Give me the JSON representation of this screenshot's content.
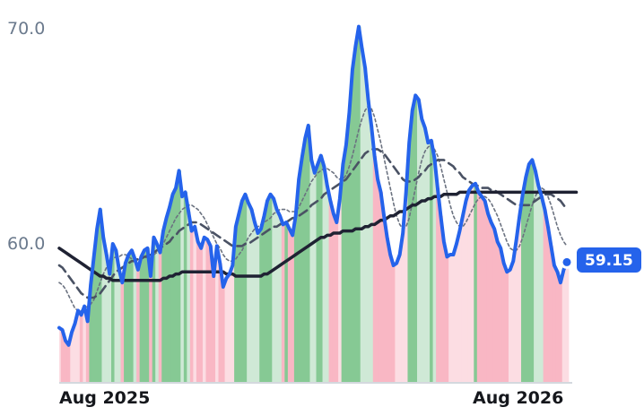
{
  "chart_data": {
    "type": "line",
    "y_ticks": [
      "70.0",
      "60.0"
    ],
    "y_tick_values": [
      70,
      60
    ],
    "x_ticks": [
      "Aug 2025",
      "Aug 2026"
    ],
    "x_tick_values": [
      "2025-08",
      "2026-08"
    ],
    "x_range": [
      "2025-07",
      "2026-09"
    ],
    "ylim": [
      53.7,
      71.6
    ],
    "last_value_label": "59.15",
    "grid": false,
    "colors": {
      "price": "#2563eb",
      "ma_long": "#1f2233",
      "ma_mid": "#4a5264",
      "ma_short": "#6b7280",
      "up_fill": "#86c994",
      "up_fill_light": "#cfe9d6",
      "down_fill": "#f9b7c4",
      "down_fill_light": "#fcdde3",
      "label_bg": "#2563eb",
      "axis": "#d4d8de"
    },
    "price_values": [
      56.1,
      56.0,
      55.5,
      55.3,
      55.9,
      56.3,
      56.9,
      56.7,
      57.1,
      56.4,
      58.1,
      59.4,
      60.7,
      61.6,
      60.3,
      59.5,
      58.6,
      60.0,
      59.7,
      58.8,
      58.2,
      59.1,
      59.5,
      59.7,
      59.3,
      58.8,
      59.4,
      59.7,
      59.8,
      58.5,
      60.3,
      60.0,
      59.6,
      60.6,
      61.2,
      61.7,
      62.3,
      62.6,
      63.4,
      62.2,
      62.4,
      61.5,
      60.6,
      60.8,
      60.1,
      59.8,
      60.3,
      60.2,
      59.9,
      58.5,
      59.9,
      59.1,
      58.0,
      58.4,
      58.6,
      59.0,
      60.8,
      61.4,
      62.0,
      62.3,
      61.9,
      61.6,
      61.0,
      60.5,
      60.7,
      61.3,
      62.0,
      62.3,
      62.1,
      61.6,
      61.3,
      60.9,
      61.0,
      60.7,
      60.4,
      61.3,
      63.0,
      64.0,
      64.9,
      65.5,
      63.9,
      63.3,
      63.7,
      64.1,
      63.6,
      62.7,
      62.0,
      61.4,
      61.0,
      62.1,
      63.7,
      64.6,
      66.1,
      68.1,
      69.2,
      70.1,
      69.1,
      68.2,
      66.7,
      65.5,
      64.1,
      63.0,
      62.4,
      61.3,
      60.3,
      59.5,
      59.0,
      59.1,
      59.5,
      60.5,
      62.4,
      64.7,
      66.2,
      66.9,
      66.7,
      65.8,
      65.4,
      64.7,
      64.8,
      64.0,
      62.6,
      61.3,
      60.1,
      59.4,
      59.5,
      59.5,
      60.0,
      60.6,
      61.3,
      62.0,
      62.5,
      62.7,
      62.8,
      62.4,
      62.2,
      62.0,
      61.4,
      61.0,
      60.7,
      60.1,
      59.8,
      59.1,
      58.7,
      58.8,
      59.2,
      60.2,
      61.3,
      62.3,
      63.1,
      63.7,
      63.9,
      63.4,
      62.7,
      62.2,
      61.6,
      60.8,
      59.9,
      59.0,
      58.7,
      58.2,
      58.8,
      59.15
    ],
    "ma_short_values": [
      58.2,
      58.1,
      57.9,
      57.6,
      57.3,
      57.0,
      56.9,
      56.9,
      57.0,
      57.1,
      57.2,
      57.4,
      57.8,
      58.2,
      58.6,
      58.9,
      59.1,
      59.3,
      59.4,
      59.4,
      59.5,
      59.5,
      59.4,
      59.3,
      59.3,
      59.3,
      59.3,
      59.4,
      59.5,
      59.5,
      59.5,
      59.6,
      59.8,
      60.0,
      60.3,
      60.6,
      60.9,
      61.2,
      61.4,
      61.6,
      61.7,
      61.8,
      61.8,
      61.7,
      61.6,
      61.4,
      61.2,
      60.9,
      60.6,
      60.3,
      60.0,
      59.8,
      59.5,
      59.3,
      59.2,
      59.2,
      59.3,
      59.5,
      59.7,
      60.0,
      60.3,
      60.5,
      60.7,
      60.8,
      60.9,
      61.0,
      61.1,
      61.2,
      61.4,
      61.5,
      61.6,
      61.6,
      61.6,
      61.5,
      61.5,
      61.5,
      61.7,
      62.0,
      62.3,
      62.6,
      62.9,
      63.1,
      63.3,
      63.4,
      63.5,
      63.5,
      63.4,
      63.3,
      63.1,
      63.0,
      63.0,
      63.2,
      63.6,
      64.1,
      64.7,
      65.3,
      65.8,
      66.2,
      66.4,
      66.3,
      65.9,
      65.3,
      64.7,
      64.0,
      63.3,
      62.6,
      61.9,
      61.3,
      60.9,
      60.7,
      60.8,
      61.2,
      61.9,
      62.6,
      63.3,
      63.9,
      64.3,
      64.5,
      64.6,
      64.4,
      64.1,
      63.6,
      63.0,
      62.4,
      61.8,
      61.3,
      61.0,
      60.8,
      60.8,
      61.0,
      61.3,
      61.6,
      61.9,
      62.1,
      62.2,
      62.2,
      62.1,
      61.9,
      61.6,
      61.3,
      60.9,
      60.5,
      60.1,
      59.8,
      59.7,
      59.7,
      59.9,
      60.3,
      60.8,
      61.3,
      61.8,
      62.2,
      62.5,
      62.6,
      62.5,
      62.2,
      61.8,
      61.3,
      60.8,
      60.4,
      60.1,
      59.9
    ],
    "ma_mid_values": [
      59.0,
      58.9,
      58.7,
      58.5,
      58.3,
      58.1,
      57.9,
      57.7,
      57.6,
      57.5,
      57.5,
      57.5,
      57.6,
      57.7,
      57.9,
      58.1,
      58.3,
      58.5,
      58.7,
      58.8,
      58.9,
      59.0,
      59.1,
      59.2,
      59.2,
      59.3,
      59.3,
      59.4,
      59.4,
      59.5,
      59.6,
      59.7,
      59.8,
      59.9,
      60.0,
      60.1,
      60.3,
      60.4,
      60.6,
      60.7,
      60.8,
      60.9,
      61.0,
      61.0,
      61.0,
      60.9,
      60.8,
      60.7,
      60.6,
      60.5,
      60.4,
      60.3,
      60.2,
      60.1,
      60.0,
      59.9,
      59.9,
      59.9,
      59.9,
      60.0,
      60.0,
      60.1,
      60.2,
      60.3,
      60.4,
      60.5,
      60.6,
      60.7,
      60.8,
      60.8,
      60.9,
      61.0,
      61.0,
      61.1,
      61.2,
      61.2,
      61.3,
      61.4,
      61.5,
      61.6,
      61.8,
      61.9,
      62.0,
      62.1,
      62.3,
      62.4,
      62.5,
      62.6,
      62.7,
      62.8,
      62.9,
      63.0,
      63.2,
      63.4,
      63.6,
      63.8,
      64.0,
      64.2,
      64.3,
      64.4,
      64.4,
      64.4,
      64.3,
      64.2,
      64.0,
      63.8,
      63.6,
      63.4,
      63.2,
      63.0,
      62.9,
      62.9,
      62.9,
      63.0,
      63.1,
      63.3,
      63.4,
      63.6,
      63.7,
      63.8,
      63.9,
      63.9,
      63.9,
      63.8,
      63.7,
      63.6,
      63.4,
      63.3,
      63.1,
      63.0,
      62.9,
      62.8,
      62.7,
      62.7,
      62.6,
      62.6,
      62.6,
      62.5,
      62.5,
      62.4,
      62.3,
      62.2,
      62.1,
      62.0,
      61.9,
      61.8,
      61.8,
      61.8,
      61.8,
      61.8,
      61.9,
      62.0,
      62.1,
      62.2,
      62.3,
      62.3,
      62.3,
      62.2,
      62.1,
      62.0,
      61.8,
      61.6
    ],
    "ma_long_values": [
      59.8,
      59.7,
      59.6,
      59.5,
      59.4,
      59.3,
      59.2,
      59.1,
      59.0,
      58.9,
      58.8,
      58.7,
      58.6,
      58.5,
      58.5,
      58.4,
      58.4,
      58.3,
      58.3,
      58.3,
      58.3,
      58.3,
      58.3,
      58.3,
      58.3,
      58.3,
      58.3,
      58.3,
      58.3,
      58.3,
      58.3,
      58.3,
      58.3,
      58.4,
      58.4,
      58.5,
      58.5,
      58.6,
      58.6,
      58.7,
      58.7,
      58.7,
      58.7,
      58.7,
      58.7,
      58.7,
      58.7,
      58.7,
      58.7,
      58.7,
      58.7,
      58.7,
      58.7,
      58.6,
      58.6,
      58.6,
      58.5,
      58.5,
      58.5,
      58.5,
      58.5,
      58.5,
      58.5,
      58.5,
      58.5,
      58.6,
      58.6,
      58.7,
      58.8,
      58.9,
      59.0,
      59.1,
      59.2,
      59.3,
      59.4,
      59.5,
      59.6,
      59.7,
      59.8,
      59.9,
      60.0,
      60.1,
      60.2,
      60.3,
      60.3,
      60.4,
      60.4,
      60.5,
      60.5,
      60.5,
      60.6,
      60.6,
      60.6,
      60.6,
      60.7,
      60.7,
      60.7,
      60.8,
      60.8,
      60.9,
      60.9,
      61.0,
      61.1,
      61.1,
      61.2,
      61.3,
      61.3,
      61.4,
      61.5,
      61.5,
      61.6,
      61.7,
      61.8,
      61.8,
      61.9,
      62.0,
      62.0,
      62.1,
      62.1,
      62.2,
      62.2,
      62.2,
      62.3,
      62.3,
      62.3,
      62.3,
      62.3,
      62.4,
      62.4,
      62.4,
      62.4,
      62.4,
      62.4,
      62.4,
      62.4,
      62.4,
      62.4,
      62.4,
      62.4,
      62.4,
      62.4,
      62.4,
      62.4,
      62.4,
      62.4,
      62.4,
      62.4,
      62.4,
      62.4,
      62.4,
      62.4,
      62.4,
      62.4,
      62.4,
      62.4,
      62.4,
      62.4,
      62.4,
      62.4,
      62.4,
      62.4,
      62.4,
      62.4,
      62.4,
      62.4
    ]
  }
}
